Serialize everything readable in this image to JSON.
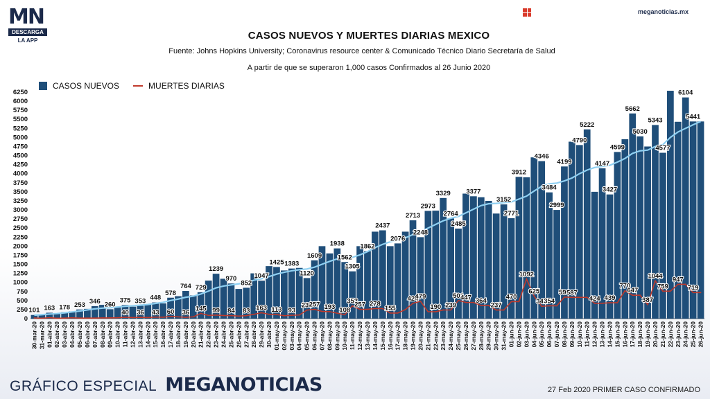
{
  "header": {
    "logo_main": "MN",
    "logo_bar": "DESCARGA",
    "logo_sub": "LA APP",
    "site": "meganoticias.mx"
  },
  "footer": {
    "special": "GRÁFICO ESPECIAL",
    "brand": "MEGANOTICIAS",
    "note": "27 Feb 2020 PRIMER CASO CONFIRMADO"
  },
  "colors": {
    "bars": "#1f4e79",
    "deaths_line": "#c0392b",
    "trend_line": "#8fd0f2",
    "brand": "#1b2a4a"
  },
  "chart_data": {
    "type": "bar",
    "title": "CASOS NUEVOS Y MUERTES DIARIAS MEXICO",
    "subtitle": "Fuente: Johns Hopkins University; Coronavirus resource center & Comunicado Técnico Diario Secretaría de Salud",
    "subtitle2": "A partir de que se superaron 1,000 casos Confirmados al 26 Junio 2020",
    "xlabel": "",
    "ylabel": "",
    "ylim": [
      0,
      6250
    ],
    "yticks": [
      0,
      250,
      500,
      750,
      1000,
      1250,
      1500,
      1750,
      2000,
      2250,
      2500,
      2750,
      3000,
      3250,
      3500,
      3750,
      4000,
      4250,
      4500,
      4750,
      5000,
      5250,
      5500,
      5750,
      6000,
      6250
    ],
    "grid": false,
    "legend": "top-left",
    "categories": [
      "30-mar-20",
      "31-mar-20",
      "01-abr-20",
      "02-abr-20",
      "03-abr-20",
      "04-abr-20",
      "05-abr-20",
      "06-abr-20",
      "07-abr-20",
      "08-abr-20",
      "09-abr-20",
      "10-abr-20",
      "11-abr-20",
      "12-abr-20",
      "13-abr-20",
      "14-abr-20",
      "15-abr-20",
      "16-abr-20",
      "17-abr-20",
      "18-abr-20",
      "19-abr-20",
      "20-abr-20",
      "21-abr-20",
      "22-abr-20",
      "23-abr-20",
      "24-abr-20",
      "25-abr-20",
      "26-abr-20",
      "27-abr-20",
      "28-abr-20",
      "29-abr-20",
      "30-abr-20",
      "01-may-20",
      "02-may-20",
      "03-may-20",
      "04-may-20",
      "05-may-20",
      "06-may-20",
      "07-may-20",
      "08-may-20",
      "09-may-20",
      "10-may-20",
      "11-may-20",
      "12-may-20",
      "13-may-20",
      "14-may-20",
      "15-may-20",
      "16-may-20",
      "17-may-20",
      "18-may-20",
      "19-may-20",
      "20-may-20",
      "21-may-20",
      "22-may-20",
      "23-may-20",
      "24-may-20",
      "25-may-20",
      "26-may-20",
      "27-may-20",
      "28-may-20",
      "29-may-20",
      "30-may-20",
      "31-may-20",
      "01-jun-20",
      "02-jun-20",
      "03-jun-20",
      "04-jun-20",
      "05-jun-20",
      "06-jun-20",
      "07-jun-20",
      "08-jun-20",
      "09-jun-20",
      "10-jun-20",
      "11-jun-20",
      "12-jun-20",
      "13-jun-20",
      "14-jun-20",
      "15-jun-20",
      "16-jun-20",
      "17-jun-20",
      "18-jun-20",
      "19-jun-20",
      "20-jun-20",
      "21-jun-20",
      "22-jun-20",
      "23-jun-20",
      "24-jun-20",
      "25-jun-20",
      "26-jun-20"
    ],
    "series": [
      {
        "name": "CASOS NUEVOS",
        "values": [
          101,
          100,
          163,
          130,
          178,
          200,
          253,
          270,
          346,
          380,
          260,
          330,
          375,
          330,
          353,
          400,
          448,
          420,
          578,
          620,
          764,
          640,
          729,
          1050,
          1239,
          1100,
          970,
          820,
          852,
          1250,
          1047,
          1450,
          1425,
          1330,
          1383,
          1400,
          1120,
          1609,
          2000,
          1800,
          1938,
          1562,
          1305,
          2000,
          1862,
          2400,
          2437,
          2000,
          2076,
          2400,
          2713,
          2248,
          2973,
          2980,
          3329,
          2764,
          2485,
          3450,
          3377,
          3350,
          3250,
          2900,
          3152,
          2771,
          3912,
          3900,
          4450,
          4346,
          3484,
          2999,
          4199,
          4883,
          4790,
          5222,
          3500,
          4147,
          3427,
          4599,
          4950,
          5662,
          5030,
          4750,
          5343,
          4577,
          6288,
          5432,
          6104,
          5441,
          5441
        ],
        "labels": [
          "101",
          "",
          "163",
          "",
          "178",
          "",
          "253",
          "",
          "346",
          "",
          "260",
          "",
          "375",
          "",
          "353",
          "",
          "448",
          "",
          "578",
          "",
          "764",
          "",
          "729",
          "",
          "1239",
          "",
          "970",
          "",
          "852",
          "",
          "1047",
          "",
          "1425",
          "",
          "1383",
          "",
          "1120",
          "1609",
          "",
          "",
          "1938",
          "1562",
          "1305",
          "",
          "1862",
          "",
          "2437",
          "",
          "2076",
          "",
          "2713",
          "2248",
          "2973",
          "",
          "3329",
          "2764",
          "2485",
          "",
          "3377",
          "",
          "",
          "",
          "3152",
          "2771",
          "3912",
          "",
          "",
          "4346",
          "3484",
          "2999",
          "4199",
          "",
          "4790",
          "5222",
          "",
          "4147",
          "3427",
          "4599",
          "",
          "5662",
          "5030",
          "",
          "5343",
          "4577",
          "",
          "",
          "6104",
          "5441",
          ""
        ]
      },
      {
        "name": "MUERTES DIARIAS",
        "values": [
          19,
          12,
          28,
          10,
          15,
          24,
          15,
          15,
          16,
          20,
          20,
          25,
          40,
          30,
          36,
          30,
          43,
          40,
          60,
          50,
          36,
          50,
          145,
          90,
          99,
          85,
          84,
          70,
          83,
          120,
          163,
          120,
          113,
          80,
          93,
          100,
          236,
          257,
          200,
          193,
          150,
          108,
          353,
          257,
          257,
          278,
          278,
          155,
          155,
          250,
          424,
          479,
          190,
          190,
          239,
          239,
          501,
          447,
          447,
          364,
          364,
          237,
          237,
          470,
          470,
          1092,
          625,
          341,
          354,
          354,
          596,
          587,
          587,
          587,
          424,
          424,
          439,
          439,
          770,
          647,
          647,
          387,
          1044,
          759,
          759,
          947,
          947,
          719,
          719
        ],
        "labels": [
          "",
          "",
          "",
          "",
          "",
          "",
          "",
          "",
          "",
          "",
          "",
          "",
          "40",
          "",
          "36",
          "",
          "43",
          "",
          "60",
          "",
          "36",
          "",
          "145",
          "",
          "99",
          "",
          "84",
          "",
          "83",
          "",
          "163",
          "",
          "113",
          "",
          "93",
          "",
          "236",
          "257",
          "",
          "193",
          "",
          "108",
          "353",
          "257",
          "",
          "278",
          "",
          "155",
          "",
          "",
          "424",
          "479",
          "",
          "190",
          "",
          "239",
          "501",
          "447",
          "",
          "364",
          "",
          "237",
          "",
          "470",
          "",
          "1092",
          "625",
          "341",
          "354",
          "",
          "596",
          "587",
          "",
          "",
          "424",
          "",
          "439",
          "",
          "770",
          "647",
          "",
          "387",
          "1044",
          "759",
          "",
          "947",
          "",
          "719",
          ""
        ]
      },
      {
        "name": "trend",
        "values": [
          95,
          110,
          125,
          140,
          160,
          185,
          210,
          240,
          270,
          290,
          300,
          320,
          340,
          355,
          370,
          390,
          420,
          450,
          500,
          540,
          590,
          620,
          680,
          760,
          850,
          900,
          930,
          960,
          1000,
          1060,
          1100,
          1160,
          1230,
          1280,
          1320,
          1350,
          1370,
          1420,
          1500,
          1580,
          1650,
          1680,
          1690,
          1760,
          1850,
          1960,
          2050,
          2120,
          2170,
          2230,
          2320,
          2400,
          2500,
          2600,
          2700,
          2770,
          2820,
          2920,
          3020,
          3120,
          3170,
          3180,
          3200,
          3220,
          3300,
          3380,
          3520,
          3650,
          3720,
          3740,
          3800,
          3880,
          4000,
          4100,
          4170,
          4200,
          4230,
          4320,
          4420,
          4560,
          4630,
          4650,
          4750,
          4800,
          5000,
          5150,
          5250,
          5350,
          5441
        ]
      }
    ]
  }
}
